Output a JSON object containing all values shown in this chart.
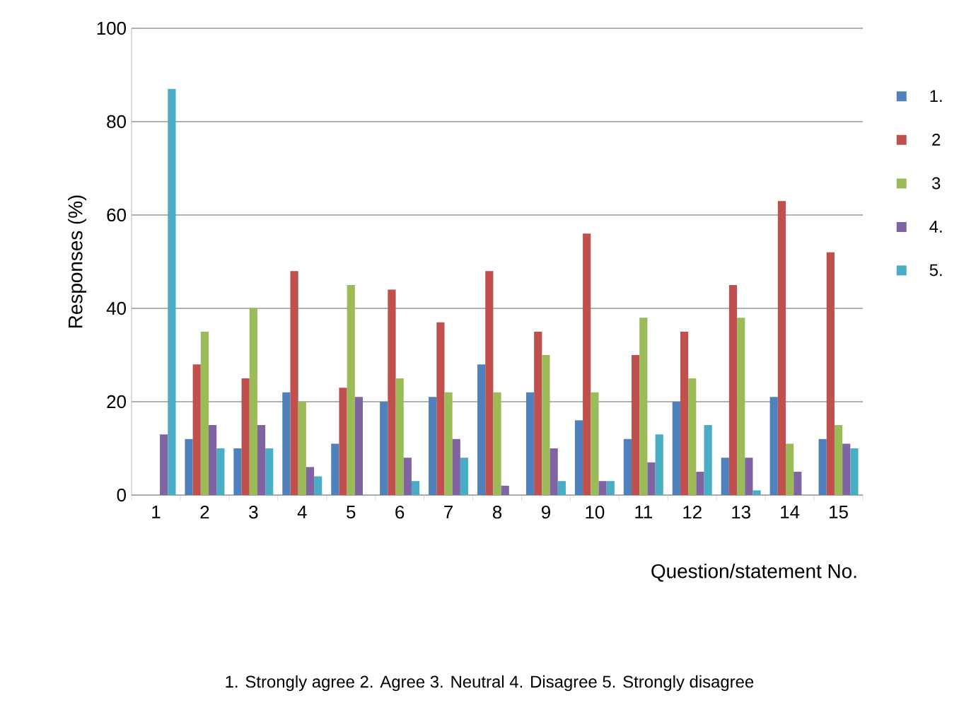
{
  "chart_data": {
    "type": "bar",
    "xlabel": "Question/statement No.",
    "ylabel": "Responses (%)",
    "categories": [
      "1",
      "2",
      "3",
      "4",
      "5",
      "6",
      "7",
      "8",
      "9",
      "10",
      "11",
      "12",
      "13",
      "14",
      "15"
    ],
    "series": [
      {
        "name": "1.",
        "color": "#4f81bd",
        "values": [
          0,
          12,
          10,
          22,
          11,
          20,
          21,
          28,
          22,
          16,
          12,
          20,
          8,
          21,
          12
        ]
      },
      {
        "name": "2",
        "color": "#c0504d",
        "values": [
          0,
          28,
          25,
          48,
          23,
          44,
          37,
          48,
          35,
          56,
          30,
          35,
          45,
          63,
          52
        ]
      },
      {
        "name": "3",
        "color": "#9bbb59",
        "values": [
          0,
          35,
          40,
          20,
          45,
          25,
          22,
          22,
          30,
          22,
          38,
          25,
          38,
          11,
          15
        ]
      },
      {
        "name": "4.",
        "color": "#8064a2",
        "values": [
          13,
          15,
          15,
          6,
          21,
          8,
          12,
          2,
          10,
          3,
          7,
          5,
          8,
          5,
          11
        ]
      },
      {
        "name": "5.",
        "color": "#4bacc6",
        "values": [
          87,
          10,
          10,
          4,
          0,
          3,
          8,
          0,
          3,
          3,
          13,
          15,
          1,
          0,
          10
        ]
      }
    ],
    "ylim": [
      0,
      100
    ],
    "yticks": [
      0,
      20,
      40,
      60,
      80,
      100
    ],
    "grid": "y",
    "legend": "right",
    "annotations": [
      "1. Strongly agree  2. Agree  3. Neutral  4. Disagree  5. Strongly disagree"
    ]
  }
}
